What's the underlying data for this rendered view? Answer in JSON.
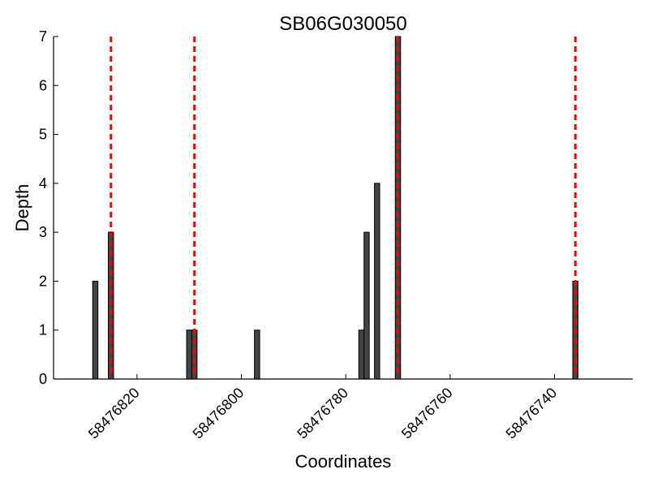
{
  "chart_data": {
    "type": "bar",
    "title": "SB06G030050",
    "xlabel": "Coordinates",
    "ylabel": "Depth",
    "x_reversed": true,
    "xlim": [
      58476836,
      58476725
    ],
    "ylim": [
      0,
      7
    ],
    "x_ticks": [
      58476820,
      58476800,
      58476780,
      58476760,
      58476740
    ],
    "y_ticks": [
      0,
      1,
      2,
      3,
      4,
      5,
      6,
      7
    ],
    "grid": false,
    "bar_color": "#444444",
    "marker_color": "#ff0000",
    "bars": [
      {
        "x": 58476828,
        "y": 2
      },
      {
        "x": 58476825,
        "y": 3
      },
      {
        "x": 58476810,
        "y": 1
      },
      {
        "x": 58476809,
        "y": 1
      },
      {
        "x": 58476797,
        "y": 1
      },
      {
        "x": 58476777,
        "y": 1
      },
      {
        "x": 58476776,
        "y": 3
      },
      {
        "x": 58476774,
        "y": 4
      },
      {
        "x": 58476770,
        "y": 7
      },
      {
        "x": 58476736,
        "y": 2
      }
    ],
    "markers": [
      58476825,
      58476809,
      58476770,
      58476736
    ]
  }
}
